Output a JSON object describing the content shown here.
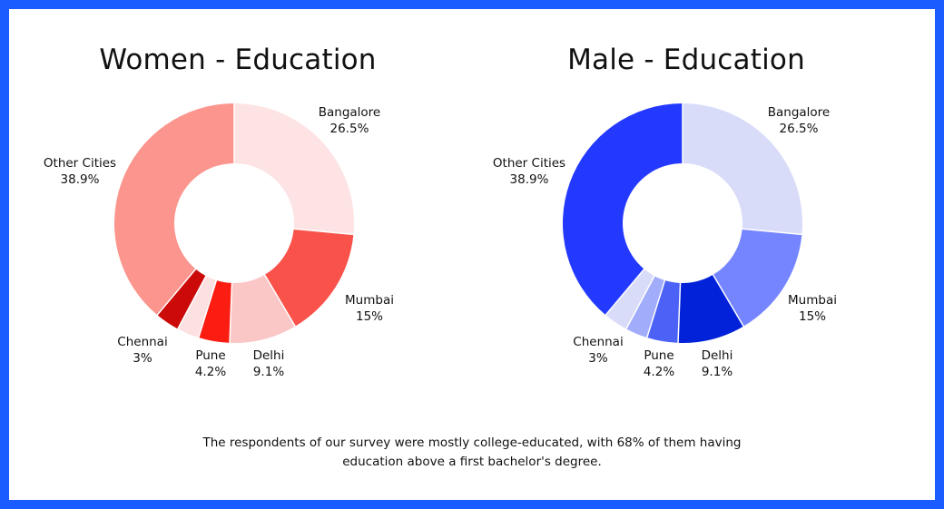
{
  "chart_data": [
    {
      "type": "pie",
      "title": "Women - Education",
      "categories": [
        "Bangalore",
        "Mumbai",
        "Delhi",
        "Pune",
        "Chennai",
        "Other Cities"
      ],
      "values": [
        26.5,
        15,
        9.1,
        4.2,
        3,
        38.9
      ],
      "value_labels": [
        "26.5%",
        "15%",
        "9.1%",
        "4.2%",
        "3%",
        "38.9%"
      ],
      "colors": [
        "#fde3e3",
        "#f9524a",
        "#fbc6c6",
        "#fb1c12",
        "#fde0e0",
        "#cc0a0a",
        "#fb958d"
      ],
      "gap_after": [
        false,
        false,
        false,
        false,
        true,
        false
      ],
      "donut": true
    },
    {
      "type": "pie",
      "title": "Male - Education",
      "categories": [
        "Bangalore",
        "Mumbai",
        "Delhi",
        "Pune",
        "Chennai",
        "Other Cities"
      ],
      "values": [
        26.5,
        15,
        9.1,
        4.2,
        3,
        38.9
      ],
      "value_labels": [
        "26.5%",
        "15%",
        "9.1%",
        "4.2%",
        "3%",
        "38.9%"
      ],
      "colors": [
        "#d9dcf9",
        "#7585ff",
        "#0222d9",
        "#4c62f6",
        "#a1acfa",
        "#d9dcf9",
        "#2339ff"
      ],
      "gap_after": [
        false,
        false,
        false,
        false,
        true,
        false
      ],
      "donut": true
    }
  ],
  "caption": "The respondents of our survey were mostly college-educated, with 68% of them having education above a first bachelor's degree."
}
